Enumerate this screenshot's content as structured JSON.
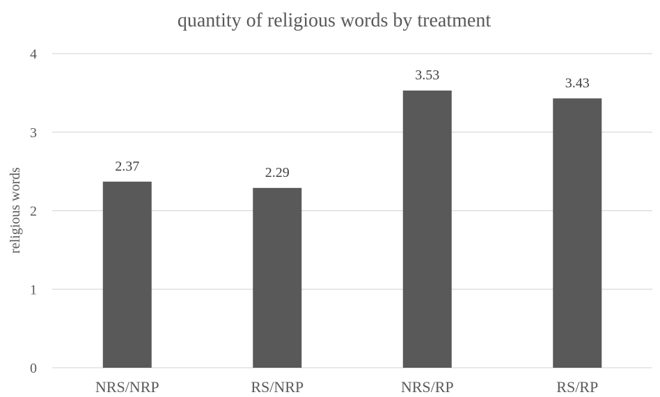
{
  "chart_data": {
    "type": "bar",
    "title": "quantity of religious words by treatment",
    "xlabel": "",
    "ylabel": "religious words",
    "categories": [
      "NRS/NRP",
      "RS/NRP",
      "NRS/RP",
      "RS/RP"
    ],
    "values": [
      2.37,
      2.29,
      3.53,
      3.43
    ],
    "data_labels": [
      "2.37",
      "2.29",
      "3.53",
      "3.43"
    ],
    "ylim": [
      0,
      4
    ],
    "yticks": [
      0,
      1,
      2,
      3,
      4
    ],
    "ytick_labels": [
      "0",
      "1",
      "2",
      "3",
      "4"
    ],
    "grid": true,
    "legend": "none",
    "bar_color": "#595959",
    "grid_color": "#d9d9d9"
  }
}
